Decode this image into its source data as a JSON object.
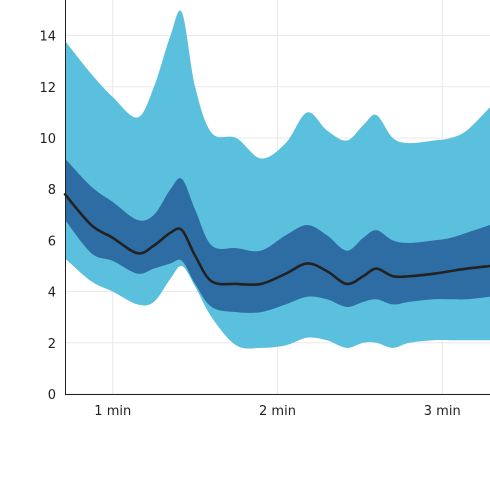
{
  "chart_data": {
    "type": "area",
    "title": "",
    "xlabel": "",
    "ylabel": "",
    "xlim": [
      0.71,
      3.29
    ],
    "ylim": [
      0,
      15
    ],
    "x_ticks": [
      {
        "value": 1,
        "label": "1 min"
      },
      {
        "value": 2,
        "label": "2 min"
      },
      {
        "value": 3,
        "label": "3 min"
      }
    ],
    "y_ticks": [
      {
        "value": 0,
        "label": "0"
      },
      {
        "value": 2,
        "label": "2"
      },
      {
        "value": 4,
        "label": "4"
      },
      {
        "value": 6,
        "label": "6"
      },
      {
        "value": 8,
        "label": "8"
      },
      {
        "value": 10,
        "label": "10"
      },
      {
        "value": 12,
        "label": "12"
      },
      {
        "value": 14,
        "label": "14"
      }
    ],
    "grid": true,
    "x": [
      0.71,
      0.87,
      1.0,
      1.15,
      1.25,
      1.35,
      1.42,
      1.5,
      1.6,
      1.75,
      1.9,
      2.05,
      2.18,
      2.3,
      2.42,
      2.52,
      2.6,
      2.7,
      2.8,
      2.95,
      3.05,
      3.15,
      3.29
    ],
    "series": [
      {
        "color": "#5bc0de",
        "lower": [
          5.3,
          4.4,
          4.0,
          3.5,
          3.6,
          4.5,
          5.0,
          4.2,
          3.0,
          1.9,
          1.8,
          1.9,
          2.2,
          2.1,
          1.8,
          2.0,
          2.0,
          1.8,
          2.0,
          2.1,
          2.1,
          2.1,
          2.1
        ],
        "upper": [
          13.8,
          12.5,
          11.6,
          10.8,
          12.0,
          14.0,
          14.9,
          12.0,
          10.2,
          10.0,
          9.2,
          9.8,
          11.0,
          10.3,
          9.9,
          10.5,
          10.9,
          10.0,
          9.8,
          9.9,
          10.0,
          10.3,
          11.2
        ]
      },
      {
        "color": "#2e6da4",
        "lower": [
          6.8,
          5.5,
          5.2,
          4.7,
          4.9,
          5.1,
          5.2,
          4.3,
          3.4,
          3.2,
          3.2,
          3.5,
          3.8,
          3.7,
          3.4,
          3.6,
          3.7,
          3.5,
          3.6,
          3.7,
          3.7,
          3.7,
          3.8
        ],
        "upper": [
          9.2,
          8.1,
          7.5,
          6.8,
          7.0,
          8.0,
          8.4,
          7.2,
          5.8,
          5.7,
          5.6,
          6.2,
          6.6,
          6.2,
          5.6,
          6.1,
          6.4,
          6.0,
          5.9,
          6.0,
          6.1,
          6.3,
          6.6
        ]
      },
      {
        "color": "#222222",
        "values": [
          7.8,
          6.6,
          6.1,
          5.5,
          5.8,
          6.3,
          6.4,
          5.4,
          4.4,
          4.3,
          4.3,
          4.7,
          5.1,
          4.8,
          4.3,
          4.6,
          4.9,
          4.6,
          4.6,
          4.7,
          4.8,
          4.9,
          5.0
        ]
      }
    ]
  }
}
